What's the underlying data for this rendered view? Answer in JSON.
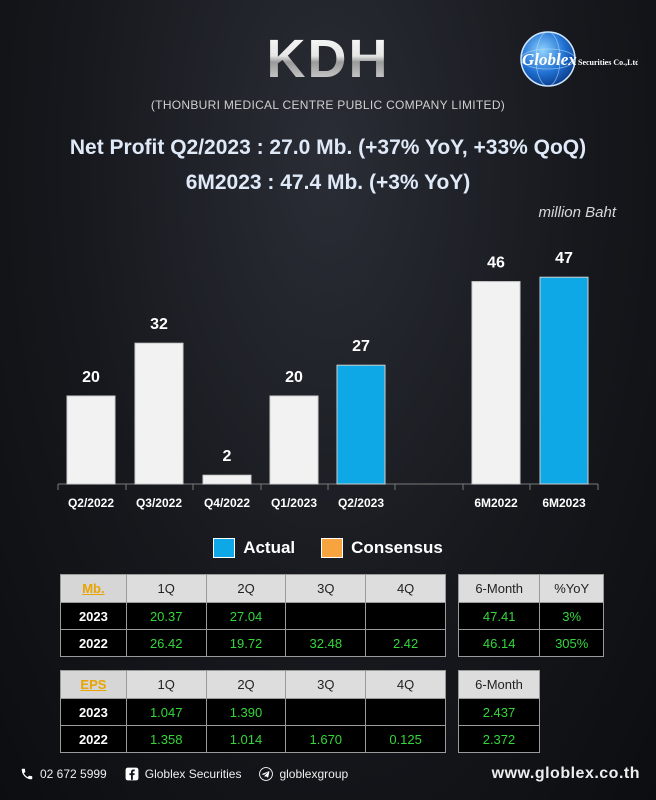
{
  "header": {
    "ticker": "KDH",
    "company": "(THONBURI MEDICAL CENTRE PUBLIC COMPANY LIMITED)",
    "headline1": "Net Profit  Q2/2023 : 27.0 Mb. (+37% YoY, +33% QoQ)",
    "headline2": "6M2023 : 47.4 Mb. (+3% YoY)",
    "unit": "million Baht",
    "logo_text": "Globlex",
    "logo_suffix": "Securities Co.,Ltd."
  },
  "chart_data": {
    "type": "bar",
    "title": "",
    "xlabel": "",
    "ylabel": "",
    "categories": [
      "Q2/2022",
      "Q3/2022",
      "Q4/2022",
      "Q1/2023",
      "Q2/2023",
      "6M2022",
      "6M2023"
    ],
    "values": [
      20,
      32,
      2,
      20,
      27,
      46,
      47
    ],
    "data_labels": [
      "20",
      "32",
      "2",
      "20",
      "27",
      "46",
      "47"
    ],
    "kinds": [
      "Actual-prev",
      "Actual-prev",
      "Actual-prev",
      "Actual-prev",
      "Actual",
      "Actual-prev",
      "Actual"
    ],
    "ylim": [
      0,
      50
    ],
    "grid": false,
    "colors": {
      "previous": "#f2f2f2",
      "actual": "#0ea8e6",
      "consensus": "#f7a440"
    },
    "legend": [
      {
        "name": "Actual",
        "color": "#0ea8e6"
      },
      {
        "name": "Consensus",
        "color": "#f7a440"
      }
    ],
    "legend_position": "bottom"
  },
  "tables": {
    "mb": {
      "corner": "Mb.",
      "headers": [
        "1Q",
        "2Q",
        "3Q",
        "4Q"
      ],
      "rows": [
        {
          "year": "2023",
          "cells": [
            "20.37",
            "27.04",
            "",
            ""
          ]
        },
        {
          "year": "2022",
          "cells": [
            "26.42",
            "19.72",
            "32.48",
            "2.42"
          ]
        }
      ]
    },
    "mb_summary": {
      "headers": [
        "6-Month",
        "%YoY"
      ],
      "rows": [
        [
          "47.41",
          "3%"
        ],
        [
          "46.14",
          "305%"
        ]
      ]
    },
    "eps": {
      "corner": "EPS",
      "headers": [
        "1Q",
        "2Q",
        "3Q",
        "4Q"
      ],
      "rows": [
        {
          "year": "2023",
          "cells": [
            "1.047",
            "1.390",
            "",
            ""
          ]
        },
        {
          "year": "2022",
          "cells": [
            "1.358",
            "1.014",
            "1.670",
            "0.125"
          ]
        }
      ]
    },
    "eps_summary": {
      "headers": [
        "6-Month"
      ],
      "rows": [
        [
          "2.437"
        ],
        [
          "2.372"
        ]
      ]
    }
  },
  "footer": {
    "phone": "02 672 5999",
    "facebook": "Globlex Securities",
    "telegram": "globlexgroup",
    "website": "www.globlex.co.th"
  }
}
